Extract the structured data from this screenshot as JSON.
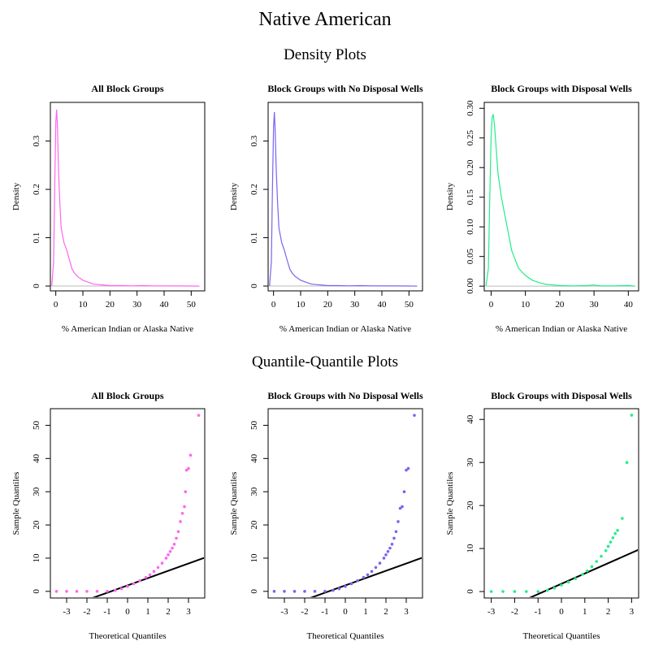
{
  "page": {
    "title": "Native American",
    "density_heading": "Density Plots",
    "qq_heading": "Quantile-Quantile Plots"
  },
  "chart_data": [
    {
      "type": "line",
      "group": "density",
      "title": "All Block Groups",
      "xlabel": "% American Indian or Alaska Native",
      "ylabel": "Density",
      "xlim": [
        -2,
        55
      ],
      "ylim": [
        -0.01,
        0.38
      ],
      "xticks": [
        0,
        10,
        20,
        30,
        40,
        50
      ],
      "yticks": [
        0.0,
        0.1,
        0.2,
        0.3
      ],
      "color": "#ff66ee",
      "x": [
        -1.5,
        -0.8,
        -0.4,
        0,
        0.3,
        0.6,
        1,
        1.5,
        2,
        3,
        4,
        5,
        6,
        7,
        8,
        10,
        12,
        14,
        16,
        18,
        20,
        24,
        28,
        32,
        36,
        40,
        45,
        50,
        53
      ],
      "y": [
        0.0,
        0.05,
        0.2,
        0.34,
        0.365,
        0.33,
        0.24,
        0.17,
        0.12,
        0.09,
        0.075,
        0.055,
        0.035,
        0.026,
        0.02,
        0.012,
        0.008,
        0.004,
        0.003,
        0.002,
        0.001,
        0.001,
        0.0005,
        0.001,
        0.0005,
        0.0003,
        0.0002,
        0.0001,
        0.0
      ]
    },
    {
      "type": "line",
      "group": "density",
      "title": "Block Groups with No Disposal Wells",
      "xlabel": "% American Indian or Alaska Native",
      "ylabel": "Density",
      "xlim": [
        -2,
        55
      ],
      "ylim": [
        -0.01,
        0.38
      ],
      "xticks": [
        0,
        10,
        20,
        30,
        40,
        50
      ],
      "yticks": [
        0.0,
        0.1,
        0.2,
        0.3
      ],
      "color": "#7766ee",
      "x": [
        -1.5,
        -0.8,
        -0.4,
        0,
        0.3,
        0.6,
        1,
        1.5,
        2,
        3,
        4,
        5,
        6,
        7,
        8,
        10,
        12,
        14,
        16,
        18,
        20,
        24,
        28,
        32,
        36,
        40,
        45,
        50,
        53
      ],
      "y": [
        0.0,
        0.05,
        0.2,
        0.33,
        0.36,
        0.32,
        0.24,
        0.17,
        0.12,
        0.09,
        0.074,
        0.054,
        0.035,
        0.026,
        0.02,
        0.012,
        0.008,
        0.004,
        0.003,
        0.002,
        0.001,
        0.001,
        0.0005,
        0.001,
        0.0005,
        0.0003,
        0.0002,
        0.0001,
        0.0
      ]
    },
    {
      "type": "line",
      "group": "density",
      "title": "Block Groups with Disposal Wells",
      "xlabel": "% American Indian or Alaska Native",
      "ylabel": "Density",
      "xlim": [
        -2,
        43
      ],
      "ylim": [
        -0.008,
        0.31
      ],
      "xticks": [
        0,
        10,
        20,
        30,
        40
      ],
      "yticks": [
        0.0,
        0.05,
        0.1,
        0.15,
        0.2,
        0.25,
        0.3
      ],
      "ytick_labels": [
        "0.00",
        "0.05",
        "0.10",
        "0.15",
        "0.20",
        "0.25",
        "0.30"
      ],
      "color": "#22ee88",
      "x": [
        -1.5,
        -0.8,
        -0.4,
        0,
        0.3,
        0.6,
        1,
        1.5,
        2,
        3,
        4,
        5,
        6,
        7,
        8,
        10,
        12,
        14,
        16,
        18,
        20,
        24,
        28,
        30,
        32,
        36,
        40,
        42
      ],
      "y": [
        0.0,
        0.03,
        0.15,
        0.25,
        0.285,
        0.29,
        0.27,
        0.23,
        0.19,
        0.15,
        0.12,
        0.09,
        0.06,
        0.045,
        0.03,
        0.018,
        0.01,
        0.006,
        0.003,
        0.002,
        0.001,
        0.0005,
        0.001,
        0.002,
        0.0005,
        0.0005,
        0.001,
        0.0
      ]
    },
    {
      "type": "scatter",
      "group": "qq",
      "title": "All Block Groups",
      "xlabel": "Theoretical Quantiles",
      "ylabel": "Sample Quantiles",
      "xlim": [
        -3.8,
        3.8
      ],
      "ylim": [
        -2,
        55
      ],
      "xticks": [
        -3,
        -2,
        -1,
        0,
        1,
        2,
        3
      ],
      "yticks": [
        0,
        10,
        20,
        30,
        40,
        50
      ],
      "color": "#ff66ee",
      "line": {
        "slope": 2.2,
        "intercept": 1.8
      },
      "x": [
        -3.5,
        -3.0,
        -2.5,
        -2.0,
        -1.5,
        -1.0,
        -0.6,
        -0.3,
        0.0,
        0.3,
        0.6,
        0.9,
        1.1,
        1.3,
        1.5,
        1.7,
        1.9,
        2.0,
        2.1,
        2.2,
        2.3,
        2.4,
        2.5,
        2.6,
        2.7,
        2.8,
        2.85,
        2.9,
        3.0,
        3.1,
        3.5
      ],
      "y": [
        0,
        0,
        0,
        0,
        0,
        0,
        0.3,
        0.8,
        1.5,
        2.3,
        3.2,
        4.2,
        5.0,
        6.0,
        7.2,
        8.5,
        10.0,
        11.0,
        12.0,
        13.0,
        14.2,
        16.0,
        18.0,
        21.0,
        23.5,
        25.5,
        30.0,
        36.5,
        37.0,
        41.0,
        53.0
      ]
    },
    {
      "type": "scatter",
      "group": "qq",
      "title": "Block Groups with No Disposal Wells",
      "xlabel": "Theoretical Quantiles",
      "ylabel": "Sample Quantiles",
      "xlim": [
        -3.8,
        3.8
      ],
      "ylim": [
        -2,
        55
      ],
      "xticks": [
        -3,
        -2,
        -1,
        0,
        1,
        2,
        3
      ],
      "yticks": [
        0,
        10,
        20,
        30,
        40,
        50
      ],
      "color": "#7766ee",
      "line": {
        "slope": 2.2,
        "intercept": 1.8
      },
      "x": [
        -3.5,
        -3.0,
        -2.5,
        -2.0,
        -1.5,
        -1.0,
        -0.6,
        -0.3,
        0.0,
        0.3,
        0.6,
        0.9,
        1.1,
        1.3,
        1.5,
        1.7,
        1.9,
        2.0,
        2.1,
        2.2,
        2.3,
        2.4,
        2.5,
        2.6,
        2.7,
        2.8,
        2.9,
        3.0,
        3.1,
        3.4
      ],
      "y": [
        0,
        0,
        0,
        0,
        0,
        0,
        0.3,
        0.8,
        1.5,
        2.3,
        3.2,
        4.2,
        5.0,
        6.0,
        7.2,
        8.5,
        10.0,
        11.0,
        12.0,
        13.0,
        14.2,
        16.0,
        18.0,
        21.0,
        25.0,
        25.5,
        30.0,
        36.5,
        37.0,
        53.0
      ]
    },
    {
      "type": "scatter",
      "group": "qq",
      "title": "Block Groups with Disposal Wells",
      "xlabel": "Theoretical Quantiles",
      "ylabel": "Sample Quantiles",
      "xlim": [
        -3.3,
        3.3
      ],
      "ylim": [
        -1.5,
        42.5
      ],
      "xticks": [
        -3,
        -2,
        -1,
        0,
        1,
        2,
        3
      ],
      "yticks": [
        0,
        10,
        20,
        30,
        40
      ],
      "color": "#22ee88",
      "line": {
        "slope": 2.4,
        "intercept": 1.8
      },
      "x": [
        -3.0,
        -2.5,
        -2.0,
        -1.5,
        -1.0,
        -0.6,
        -0.3,
        0.0,
        0.3,
        0.6,
        0.9,
        1.1,
        1.3,
        1.5,
        1.7,
        1.9,
        2.0,
        2.1,
        2.2,
        2.3,
        2.4,
        2.6,
        2.8,
        3.0
      ],
      "y": [
        0,
        0,
        0,
        0,
        0,
        0.3,
        0.8,
        1.5,
        2.2,
        3.0,
        4.0,
        4.8,
        5.8,
        7.0,
        8.2,
        9.5,
        10.5,
        11.5,
        12.5,
        13.5,
        14.2,
        17.0,
        30.0,
        41.0
      ]
    }
  ]
}
